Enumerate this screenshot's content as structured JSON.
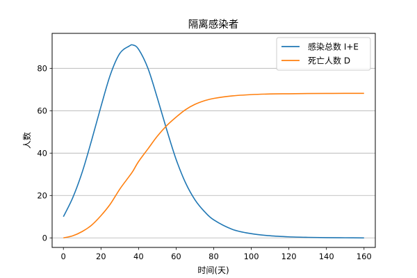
{
  "chart_data": {
    "type": "line",
    "title": "隔离感染者",
    "xlabel": "时间(天)",
    "ylabel": "人数",
    "xlim": [
      -6,
      166
    ],
    "ylim": [
      -4.5,
      96.5
    ],
    "xticks": [
      0,
      20,
      40,
      60,
      80,
      100,
      120,
      140,
      160
    ],
    "yticks": [
      0,
      20,
      40,
      60,
      80
    ],
    "grid": "horizontal",
    "legend_position": "top-right",
    "x": [
      0,
      5,
      10,
      15,
      20,
      25,
      30,
      35,
      37,
      40,
      45,
      50,
      55,
      60,
      65,
      70,
      75,
      80,
      90,
      100,
      110,
      120,
      130,
      140,
      150,
      160
    ],
    "series": [
      {
        "name": "感染总数 I+E",
        "color": "#1f77b4",
        "values": [
          10,
          19,
          31,
          46,
          62,
          77,
          87,
          90.5,
          91,
          89,
          80,
          66,
          51,
          37,
          26,
          18,
          12.5,
          8.5,
          4,
          2,
          1,
          0.5,
          0.25,
          0.1,
          0.05,
          0
        ]
      },
      {
        "name": "死亡人数 D",
        "color": "#ff7f0e",
        "values": [
          0,
          1,
          3,
          6,
          10.5,
          16,
          23,
          29,
          31.5,
          36,
          42,
          48,
          53,
          57,
          60.5,
          63,
          64.7,
          65.8,
          67,
          67.6,
          67.9,
          68,
          68.1,
          68.15,
          68.2,
          68.2
        ]
      }
    ]
  }
}
